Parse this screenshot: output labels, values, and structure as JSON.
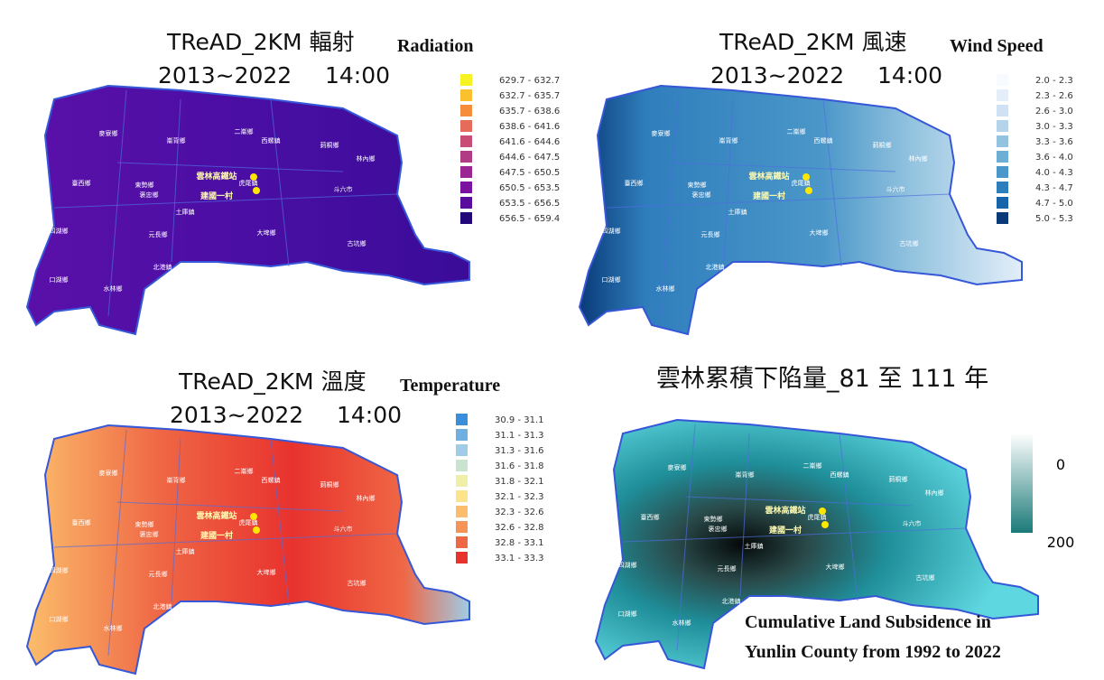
{
  "panels": [
    {
      "title": "TReAD_2KM  輻射",
      "title_en": "Radiation",
      "period": "2013~2022",
      "time": "14:00",
      "legend": [
        "629.7 - 632.7",
        "632.7 - 635.7",
        "635.7 - 638.6",
        "638.6 - 641.6",
        "641.6 - 644.6",
        "644.6 - 647.5",
        "647.5 - 650.5",
        "650.5 - 653.5",
        "653.5 - 656.5",
        "656.5 - 659.4"
      ],
      "colors": [
        "#f7f322",
        "#fbc02d",
        "#f68d3c",
        "#e66b5a",
        "#c84d76",
        "#b13c86",
        "#9b2593",
        "#7a11a0",
        "#5a0c9c",
        "#23087a"
      ]
    },
    {
      "title": "TReAD_2KM  風速",
      "title_en": "Wind Speed",
      "period": "2013~2022",
      "time": "14:00",
      "legend": [
        "2.0 - 2.3",
        "2.3 - 2.6",
        "2.6 - 3.0",
        "3.0 - 3.3",
        "3.3 - 3.6",
        "3.6 - 4.0",
        "4.0 - 4.3",
        "4.3 - 4.7",
        "4.7 - 5.0",
        "5.0 - 5.3"
      ],
      "colors": [
        "#f7fbff",
        "#e3eef9",
        "#cfe1f2",
        "#b5d4e9",
        "#93c3df",
        "#6daed5",
        "#4b97c9",
        "#2f7ebc",
        "#1864aa",
        "#0a3a78"
      ]
    },
    {
      "title": "TReAD_2KM  溫度",
      "title_en": "Temperature",
      "period": "2013~2022",
      "time": "14:00",
      "legend": [
        "30.9 - 31.1",
        "31.1 - 31.3",
        "31.3 - 31.6",
        "31.6 - 31.8",
        "31.8 - 32.1",
        "32.1 - 32.3",
        "32.3 - 32.6",
        "32.6 - 32.8",
        "32.8 - 33.1",
        "33.1 - 33.3"
      ],
      "colors": [
        "#3a8fdc",
        "#6fb0e0",
        "#9fcce6",
        "#c9e3d0",
        "#eef0a8",
        "#fde38a",
        "#fbbd6b",
        "#f69457",
        "#ef6745",
        "#e8322e"
      ]
    }
  ],
  "subsidence": {
    "title": "雲林累積下陷量_81 至 111 年",
    "colorbar_ticks": [
      "0",
      "200"
    ],
    "caption": [
      "Cumulative Land Subsidence in",
      "Yunlin County from 1992 to 2022"
    ]
  },
  "places": [
    "麥寮鄉",
    "崙背鄉",
    "二崙鄉",
    "西螺鎮",
    "莿桐鄉",
    "林內鄉",
    "臺西鄉",
    "東勢鄉",
    "褒忠鄉",
    "虎尾鎮",
    "斗六市",
    "土庫鎮",
    "四湖鄉",
    "元長鄉",
    "大埤鄉",
    "古坑鄉",
    "口湖鄉",
    "北港鎮",
    "水林鄉",
    "雲林高鐵站",
    "建國一村"
  ]
}
